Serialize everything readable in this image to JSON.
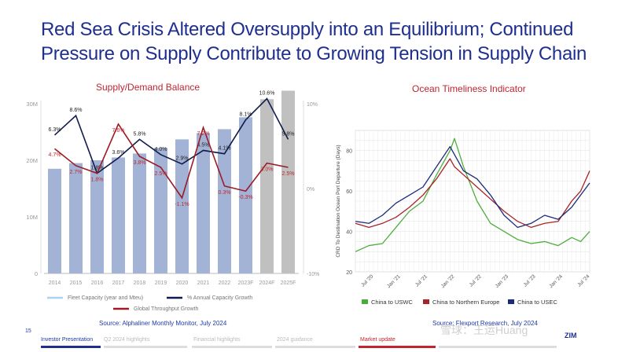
{
  "title": "Red Sea Crisis Altered Oversupply into an Equilibrium; Continued Pressure on Supply Contribute to Growing Tension in Supply Chain",
  "colors": {
    "title": "#1f2f8f",
    "accent": "#c0262e",
    "bar": "#a3b3d6",
    "bar_forecast": "#c0c0c0",
    "capacity_line": "#111c4e",
    "throughput_line": "#9b1b26",
    "green": "#4cae3a",
    "red": "#a8232a",
    "navy": "#1b2a7a"
  },
  "left_panel": {
    "title": "Supply/Demand Balance",
    "source": "Source: Alphaliner Monthly Monitor, July 2024",
    "legend": [
      "Fleet Capacity (year and Mteu)",
      "% Annual Capacity Growth",
      "Global Throughput Growth"
    ]
  },
  "right_panel": {
    "title": "Ocean Timeliness Indicator",
    "source": "Source: Flexport Research, July 2024",
    "legend": [
      "China to USWC",
      "China to Northern Europe",
      "China to USEC"
    ]
  },
  "chart_data": [
    {
      "type": "bar",
      "title": "Supply/Demand Balance",
      "categories": [
        "2014",
        "2015",
        "2016",
        "2017",
        "2018",
        "2019",
        "2020",
        "2021",
        "2022",
        "2023F",
        "2024F",
        "2025F"
      ],
      "y_left_ticks": [
        "0",
        "10M",
        "20M",
        "30M"
      ],
      "y_right_ticks": [
        "-10%",
        "0%",
        "10%"
      ],
      "ylim_left": [
        0,
        30
      ],
      "ylim_right": [
        -10,
        10
      ],
      "grid": false,
      "legend_placement": "bottom",
      "series": [
        {
          "name": "Fleet Capacity (year and Mteu)",
          "type": "bar",
          "values": [
            18.5,
            19.5,
            20,
            20.5,
            21.2,
            22.2,
            23.7,
            24.8,
            25.5,
            27.6,
            30.8,
            32.3
          ]
        },
        {
          "name": "% Annual Capacity Growth",
          "type": "line",
          "values": [
            6.3,
            8.6,
            1.8,
            3.6,
            5.8,
            4.0,
            2.9,
            4.5,
            4.1,
            8.1,
            10.6,
            5.8
          ],
          "labels": [
            "6.3%",
            "8.6%",
            "1.8%",
            "3.6%",
            "5.8%",
            "4.0%",
            "2.9%",
            "4.5%",
            "4.1%",
            "8.1%",
            "10.6%",
            "5.8%"
          ]
        },
        {
          "name": "Global Throughput Growth",
          "type": "line",
          "values": [
            4.7,
            2.7,
            1.8,
            7.6,
            3.8,
            2.5,
            -1.1,
            7.2,
            0.3,
            -0.3,
            3.0,
            2.5
          ],
          "labels": [
            "4.7%",
            "2.7%",
            "1.8%",
            "7.6%",
            "3.8%",
            "2.5%",
            "-1.1%",
            "7.2%",
            "0.3%",
            "-0.3%",
            "3.0%",
            "2.5%"
          ]
        }
      ]
    },
    {
      "type": "line",
      "title": "Ocean Timeliness Indicator",
      "ylabel": "CRD To Destination Ocean Port Departure (Days)",
      "ylim": [
        20,
        90
      ],
      "y_ticks": [
        20,
        40,
        60,
        80
      ],
      "x_ticks": [
        "Jul '20",
        "Jan '21",
        "Jul '21",
        "Jan '22",
        "Jul '22",
        "Jan '23",
        "Jul '23",
        "Jan '24",
        "Jul '24"
      ],
      "xlim": [
        "2020-03",
        "2024-07"
      ],
      "grid": true,
      "legend_placement": "bottom",
      "x": [
        "2020-03",
        "2020-06",
        "2020-09",
        "2020-12",
        "2021-03",
        "2021-06",
        "2021-09",
        "2021-12",
        "2022-01",
        "2022-03",
        "2022-06",
        "2022-09",
        "2022-12",
        "2023-03",
        "2023-06",
        "2023-09",
        "2023-12",
        "2024-03",
        "2024-05",
        "2024-07"
      ],
      "series": [
        {
          "name": "China to USWC",
          "values": [
            30,
            33,
            34,
            42,
            50,
            55,
            68,
            80,
            86,
            72,
            55,
            44,
            40,
            36,
            34,
            35,
            33,
            37,
            35,
            40
          ]
        },
        {
          "name": "China to Northern Europe",
          "values": [
            44,
            42,
            44,
            47,
            52,
            58,
            66,
            76,
            72,
            68,
            62,
            56,
            50,
            45,
            42,
            44,
            45,
            55,
            60,
            70
          ]
        },
        {
          "name": "China to USEC",
          "values": [
            45,
            44,
            48,
            54,
            58,
            62,
            72,
            82,
            78,
            70,
            66,
            58,
            48,
            42,
            44,
            48,
            46,
            52,
            58,
            64
          ]
        }
      ]
    }
  ],
  "page_number": "15",
  "footer_tabs": [
    "Investor Presentation",
    "Q2 2024 highlights",
    "Financial highlights",
    "2024 guidance",
    "Market update",
    ""
  ],
  "watermark": "雪球：王运Huang",
  "logo": "ZIM"
}
